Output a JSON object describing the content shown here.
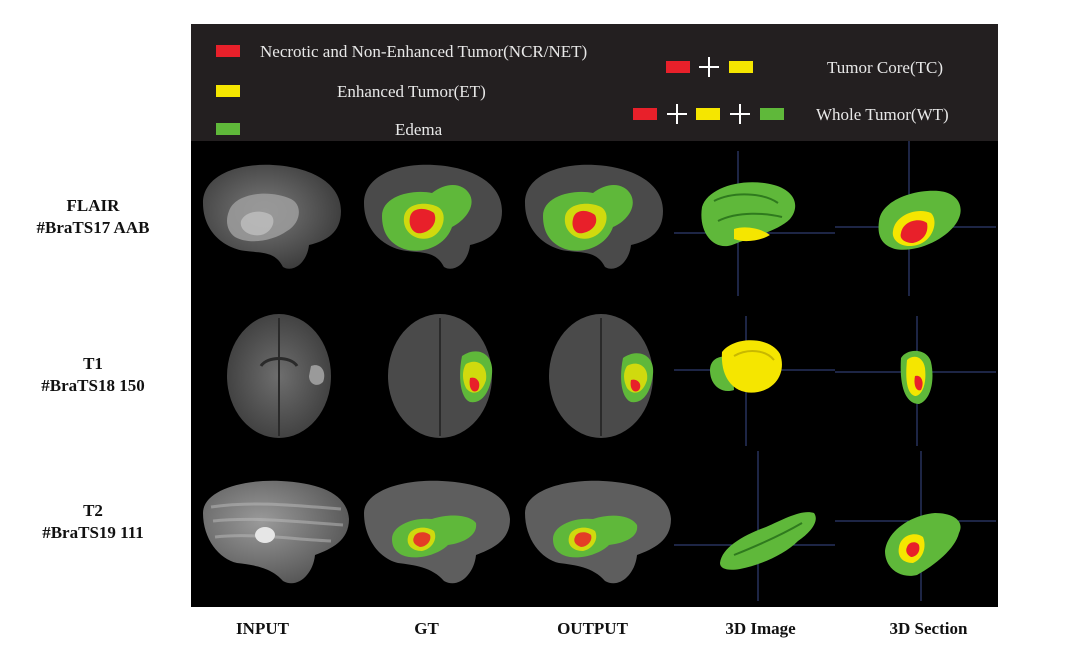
{
  "legend": {
    "items": [
      {
        "label": "Necrotic and Non-Enhanced Tumor(NCR/NET)",
        "color": "#e8202a"
      },
      {
        "label": "Enhanced Tumor(ET)",
        "color": "#f5e600"
      },
      {
        "label": "Edema",
        "color": "#5fb83a"
      }
    ],
    "combos": [
      {
        "label": "Tumor Core(TC)"
      },
      {
        "label": "Whole Tumor(WT)"
      }
    ],
    "background": "#231f20"
  },
  "rows": [
    {
      "modality": "FLAIR",
      "case_id": "#BraTS17 AAB"
    },
    {
      "modality": "T1",
      "case_id": "#BraTS18 150"
    },
    {
      "modality": "T2",
      "case_id": "#BraTS19 111"
    }
  ],
  "columns": [
    "INPUT",
    "GT",
    "OUTPUT",
    "3D Image",
    "3D Section"
  ],
  "colors": {
    "ncr": "#e8202a",
    "et": "#f5e600",
    "edema": "#5fb83a",
    "panel_bg": "#000000"
  }
}
